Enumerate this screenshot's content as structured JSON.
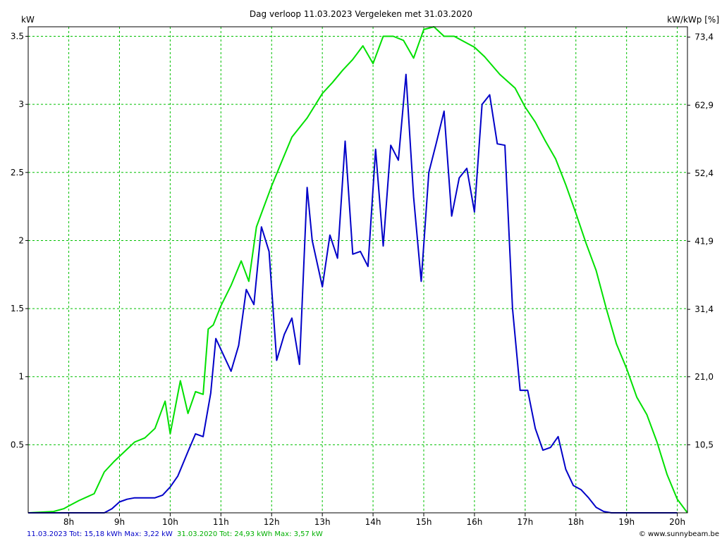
{
  "chart_data": {
    "type": "line",
    "title": "Dag  verloop 11.03.2023   Vergeleken met 31.03.2020",
    "ylabel": "kW",
    "y2label": "kW/kWp [%]",
    "xlim": [
      7.2,
      20.2
    ],
    "ylim": [
      0,
      3.57
    ],
    "y2lim": [
      0,
      75
    ],
    "grid": true,
    "grid_color": "#00c000",
    "x_ticks": [
      {
        "x": 8,
        "label": "8h"
      },
      {
        "x": 9,
        "label": "9h"
      },
      {
        "x": 10,
        "label": "10h"
      },
      {
        "x": 11,
        "label": "11h"
      },
      {
        "x": 12,
        "label": "12h"
      },
      {
        "x": 13,
        "label": "13h"
      },
      {
        "x": 14,
        "label": "14h"
      },
      {
        "x": 15,
        "label": "15h"
      },
      {
        "x": 16,
        "label": "16h"
      },
      {
        "x": 17,
        "label": "17h"
      },
      {
        "x": 18,
        "label": "18h"
      },
      {
        "x": 19,
        "label": "19h"
      },
      {
        "x": 20,
        "label": "20h"
      }
    ],
    "y_ticks": [
      {
        "y": 0.5,
        "label": "0.5"
      },
      {
        "y": 1,
        "label": "1"
      },
      {
        "y": 1.5,
        "label": "1.5"
      },
      {
        "y": 2,
        "label": "2"
      },
      {
        "y": 2.5,
        "label": "2.5"
      },
      {
        "y": 3,
        "label": "3"
      },
      {
        "y": 3.5,
        "label": "3.5"
      }
    ],
    "y2_ticks": [
      {
        "y": 10.5,
        "label": "10,5"
      },
      {
        "y": 21.0,
        "label": "21,0"
      },
      {
        "y": 31.4,
        "label": "31,4"
      },
      {
        "y": 41.9,
        "label": "41,9"
      },
      {
        "y": 52.4,
        "label": "52,4"
      },
      {
        "y": 62.9,
        "label": "62,9"
      },
      {
        "y": 73.4,
        "label": "73,4"
      }
    ],
    "series": [
      {
        "name": "31.03.2020",
        "color": "#00e000",
        "x": [
          7.2,
          7.7,
          7.9,
          8.0,
          8.2,
          8.5,
          8.7,
          8.9,
          9.1,
          9.3,
          9.5,
          9.7,
          9.9,
          10.0,
          10.2,
          10.35,
          10.5,
          10.65,
          10.75,
          10.85,
          11.0,
          11.2,
          11.4,
          11.55,
          11.7,
          11.85,
          12.0,
          12.2,
          12.4,
          12.7,
          13.0,
          13.2,
          13.4,
          13.6,
          13.8,
          14.0,
          14.2,
          14.4,
          14.6,
          14.8,
          15.0,
          15.2,
          15.4,
          15.6,
          15.8,
          16.0,
          16.2,
          16.5,
          16.8,
          17.0,
          17.2,
          17.4,
          17.6,
          17.8,
          18.0,
          18.2,
          18.4,
          18.6,
          18.8,
          19.0,
          19.2,
          19.4,
          19.6,
          19.8,
          20.0,
          20.2
        ],
        "values": [
          0,
          0.01,
          0.03,
          0.05,
          0.09,
          0.14,
          0.3,
          0.38,
          0.45,
          0.52,
          0.55,
          0.62,
          0.82,
          0.58,
          0.97,
          0.73,
          0.89,
          0.87,
          1.35,
          1.38,
          1.52,
          1.67,
          1.85,
          1.7,
          2.1,
          2.25,
          2.4,
          2.58,
          2.76,
          2.9,
          3.08,
          3.16,
          3.25,
          3.33,
          3.43,
          3.3,
          3.5,
          3.5,
          3.47,
          3.34,
          3.55,
          3.57,
          3.5,
          3.5,
          3.46,
          3.42,
          3.35,
          3.22,
          3.12,
          2.98,
          2.87,
          2.73,
          2.6,
          2.41,
          2.2,
          1.98,
          1.78,
          1.5,
          1.24,
          1.06,
          0.85,
          0.72,
          0.52,
          0.28,
          0.1,
          0
        ]
      },
      {
        "name": "11.03.2023",
        "color": "#0000c8",
        "x": [
          7.2,
          8.7,
          8.85,
          9.0,
          9.15,
          9.3,
          9.5,
          9.7,
          9.85,
          10.0,
          10.15,
          10.35,
          10.5,
          10.65,
          10.8,
          10.9,
          11.2,
          11.35,
          11.5,
          11.65,
          11.8,
          11.95,
          12.1,
          12.25,
          12.4,
          12.55,
          12.7,
          12.8,
          13.0,
          13.15,
          13.3,
          13.45,
          13.6,
          13.75,
          13.9,
          14.05,
          14.2,
          14.35,
          14.5,
          14.65,
          14.8,
          14.95,
          15.1,
          15.25,
          15.4,
          15.55,
          15.7,
          15.85,
          16.0,
          16.15,
          16.3,
          16.45,
          16.6,
          16.75,
          16.9,
          17.05,
          17.2,
          17.35,
          17.5,
          17.65,
          17.8,
          17.95,
          18.1,
          18.25,
          18.4,
          18.55,
          18.7,
          18.85,
          19.0,
          19.15,
          19.3,
          19.5,
          20.0
        ],
        "values": [
          0,
          0,
          0.03,
          0.08,
          0.1,
          0.11,
          0.11,
          0.11,
          0.13,
          0.19,
          0.27,
          0.45,
          0.58,
          0.56,
          0.88,
          1.28,
          1.04,
          1.23,
          1.64,
          1.53,
          2.1,
          1.92,
          1.12,
          1.31,
          1.43,
          1.09,
          2.39,
          2.0,
          1.66,
          2.04,
          1.87,
          2.73,
          1.9,
          1.92,
          1.81,
          2.67,
          1.96,
          2.7,
          2.59,
          3.22,
          2.32,
          1.7,
          2.5,
          2.72,
          2.95,
          2.18,
          2.46,
          2.53,
          2.21,
          3.0,
          3.07,
          2.71,
          2.7,
          1.5,
          0.9,
          0.9,
          0.62,
          0.46,
          0.48,
          0.56,
          0.32,
          0.2,
          0.17,
          0.11,
          0.04,
          0.01,
          0,
          0,
          0,
          0,
          0,
          0,
          0
        ]
      }
    ],
    "footer": {
      "left_blue": "11.03.2023 Tot: 15,18 kWh Max: 3,22 kW",
      "left_green": "31.03.2020 Tot: 24,93 kWh Max: 3,57 kW",
      "right": "© www.sunnybeam.be"
    }
  }
}
